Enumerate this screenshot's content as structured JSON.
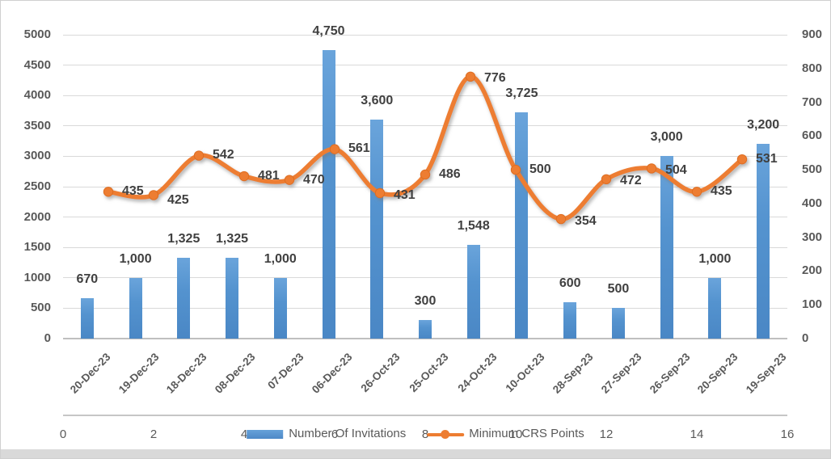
{
  "chart_data": {
    "type": "combo-bar-line",
    "title": "",
    "categories": [
      "20-Dec-23",
      "19-Dec-23",
      "18-Dec-23",
      "08-Dec-23",
      "07-De-23",
      "06-Dec-23",
      "26-Oct-23",
      "25-Oct-23",
      "24-Oct-23",
      "10-Oct-23",
      "28-Sep-23",
      "27-Sep-23",
      "26-Sep-23",
      "20-Sep-23",
      "19-Sep-23"
    ],
    "series": [
      {
        "name": "Number Of Invitations",
        "type": "bar",
        "axis": "left",
        "values": [
          670,
          1000,
          1325,
          1325,
          1000,
          4750,
          3600,
          300,
          1548,
          3725,
          600,
          500,
          3000,
          1000,
          3200
        ],
        "labels": [
          "670",
          "1,000",
          "1,325",
          "1,325",
          "1,000",
          "4,750",
          "3,600",
          "300",
          "1,548",
          "3,725",
          "600",
          "500",
          "3,000",
          "1,000",
          "3,200"
        ]
      },
      {
        "name": "Minimum CRS Points",
        "type": "line",
        "axis": "right",
        "values": [
          435,
          425,
          542,
          481,
          470,
          561,
          431,
          486,
          776,
          500,
          354,
          472,
          504,
          435,
          531
        ],
        "labels": [
          "435",
          "425",
          "542",
          "481",
          "470",
          "561",
          "431",
          "486",
          "776",
          "500",
          "354",
          "472",
          "504",
          "435",
          "531"
        ]
      }
    ],
    "axes": {
      "left": {
        "min": 0,
        "max": 5000,
        "step": 500,
        "tick_labels": [
          "0",
          "500",
          "1000",
          "1500",
          "2000",
          "2500",
          "3000",
          "3500",
          "4000",
          "4500",
          "5000"
        ]
      },
      "right": {
        "min": 0,
        "max": 900,
        "step": 100,
        "tick_labels": [
          "0",
          "100",
          "200",
          "300",
          "400",
          "500",
          "600",
          "700",
          "800",
          "900"
        ]
      },
      "secondary_x": {
        "min": 0,
        "max": 16,
        "step": 2,
        "tick_labels": [
          "0",
          "2",
          "4",
          "6",
          "8",
          "10",
          "12",
          "14",
          "16"
        ]
      }
    },
    "grid": true,
    "legend_position": "bottom"
  },
  "legend": {
    "items": [
      {
        "label": "Number Of Invitations",
        "swatch": "bar-swatch"
      },
      {
        "label": "Minimum CRS Points",
        "swatch": "line-swatch"
      }
    ]
  },
  "colors": {
    "bar_top": "#66A1D9",
    "bar_bottom": "#4D89C7",
    "line": "#ED7D31",
    "line_marker_edge": "#DE6E22",
    "value_label": "#404040",
    "axis_label": "#595959",
    "gridline": "#D9D9D9",
    "axis_line": "#BFBFBF"
  }
}
